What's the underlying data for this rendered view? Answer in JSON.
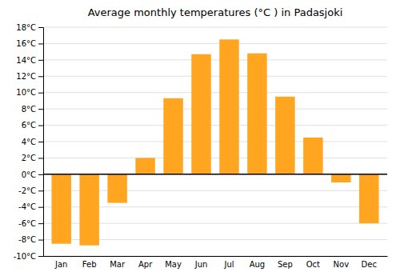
{
  "chart_data": {
    "type": "bar",
    "title": "Average monthly temperatures (°C ) in Padasjoki",
    "categories": [
      "Jan",
      "Feb",
      "Mar",
      "Apr",
      "May",
      "Jun",
      "Jul",
      "Aug",
      "Sep",
      "Oct",
      "Nov",
      "Dec"
    ],
    "values": [
      -8.5,
      -8.7,
      -3.5,
      2.0,
      9.3,
      14.7,
      16.5,
      14.8,
      9.5,
      4.5,
      -1.0,
      -6.0
    ],
    "color": "#FFA520",
    "ylim": [
      -10,
      18
    ],
    "yticks": [
      {
        "value": -10,
        "label": "-10°C"
      },
      {
        "value": -8,
        "label": "-8°C"
      },
      {
        "value": -6,
        "label": "-6°C"
      },
      {
        "value": -4,
        "label": "-4°C"
      },
      {
        "value": -2,
        "label": "-2°C"
      },
      {
        "value": 0,
        "label": "0°C"
      },
      {
        "value": 2,
        "label": "2°C"
      },
      {
        "value": 4,
        "label": "4°C"
      },
      {
        "value": 6,
        "label": "6°C"
      },
      {
        "value": 8,
        "label": "8°C"
      },
      {
        "value": 10,
        "label": "10°C"
      },
      {
        "value": 12,
        "label": "12°C"
      },
      {
        "value": 14,
        "label": "14°C"
      },
      {
        "value": 16,
        "label": "16°C"
      },
      {
        "value": 18,
        "label": "18°C"
      }
    ],
    "grid": true
  }
}
